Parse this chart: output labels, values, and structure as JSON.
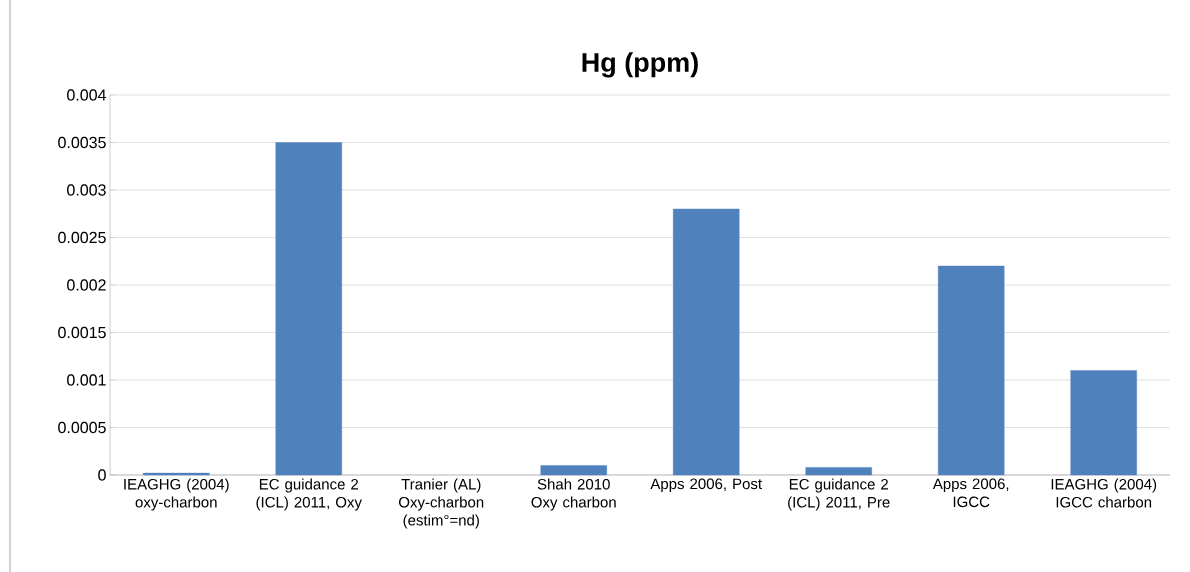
{
  "chart_data": {
    "type": "bar",
    "title": "Hg (ppm)",
    "categories": [
      "IEAGHG (2004) oxy-charbon",
      "EC guidance 2 (ICL) 2011, Oxy",
      "Tranier (AL) Oxy-charbon (estim°=nd)",
      "Shah 2010 Oxy charbon",
      "Apps 2006, Post",
      "EC guidance 2 (ICL) 2011, Pre",
      "Apps 2006, IGCC",
      "IEAGHG (2004) IGCC charbon"
    ],
    "values": [
      2e-05,
      0.0035,
      null,
      0.0001,
      0.0028,
      8e-05,
      0.0022,
      0.0011
    ],
    "color": "#4f81bd",
    "ylim": [
      0,
      0.004
    ],
    "yticks": [
      0,
      0.0005,
      0.001,
      0.0015,
      0.002,
      0.0025,
      0.003,
      0.0035,
      0.004
    ],
    "grid": "y"
  }
}
